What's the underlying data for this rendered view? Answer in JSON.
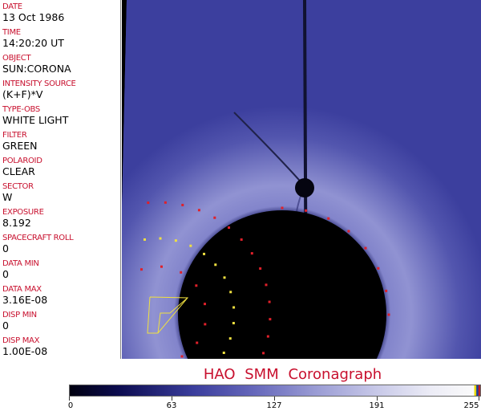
{
  "fields": [
    {
      "label": "DATE",
      "value": "13 Oct 1986"
    },
    {
      "label": "TIME",
      "value": "14:20:20 UT"
    },
    {
      "label": "OBJECT",
      "value": "SUN:CORONA"
    },
    {
      "label": "INTENSITY SOURCE",
      "value": "(K+F)*V"
    },
    {
      "label": "TYPE-OBS",
      "value": "WHITE LIGHT"
    },
    {
      "label": "FILTER",
      "value": "GREEN"
    },
    {
      "label": "POLAROID",
      "value": "CLEAR"
    },
    {
      "label": "SECTOR",
      "value": "W"
    },
    {
      "label": "EXPOSURE",
      "value": "8.192"
    },
    {
      "label": "SPACECRAFT ROLL",
      "value": "0"
    },
    {
      "label": "DATA MIN",
      "value": "0"
    },
    {
      "label": "DATA MAX",
      "value": "3.16E-08"
    },
    {
      "label": "DISP MIN",
      "value": "0"
    },
    {
      "label": "DISP MAX",
      "value": "1.00E-08"
    }
  ],
  "title": "HAO  SMM Coronagraph",
  "colorbar": {
    "ticks": [
      "0",
      "63",
      "127",
      "191",
      "255"
    ],
    "colors": {
      "low": "#000010",
      "mid": "#3a3d9c",
      "high": "#fafafa"
    }
  },
  "colors": {
    "label": "#c8102e",
    "marker_red": "#e0202a",
    "marker_yellow": "#f0e040"
  }
}
